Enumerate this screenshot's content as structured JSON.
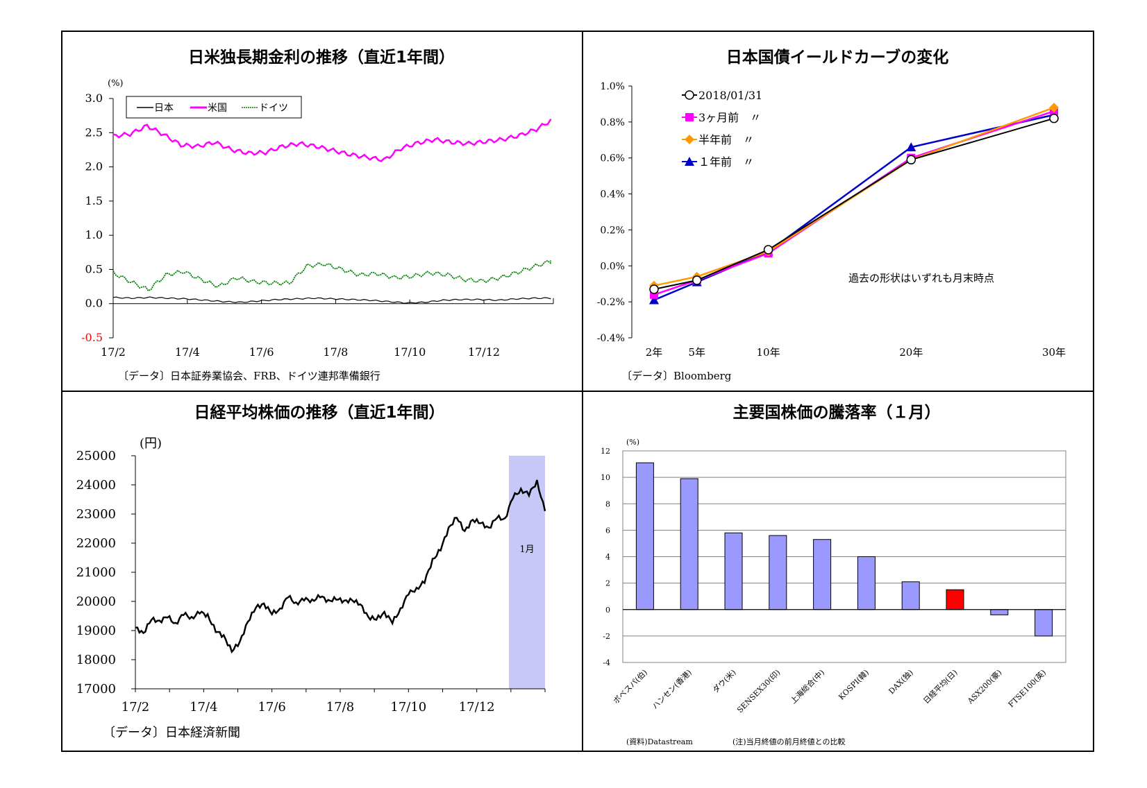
{
  "panels": {
    "rates": {
      "title": "日米独長期金利の推移（直近1年間）",
      "unit": "(%)",
      "source": "〔データ〕日本証券業協会、FRB、ドイツ連邦準備銀行"
    },
    "yield": {
      "title": "日本国債イールドカーブの変化",
      "source": "〔データ〕Bloomberg",
      "note": "過去の形状はいずれも月末時点"
    },
    "nikkei": {
      "title": "日経平均株価の推移（直近1年間）",
      "unit": "(円)",
      "source": "〔データ〕日本経済新聞",
      "highlight_label": "1月"
    },
    "stocks": {
      "title": "主要国株価の騰落率（１月）",
      "unit": "(%)",
      "source": "(資料)Datastream",
      "note": "(注)当月終値の前月終値との比較"
    }
  },
  "chart_data": [
    {
      "id": "rates",
      "type": "line",
      "title": "日米独長期金利の推移（直近1年間）",
      "ylabel": "(%)",
      "ylim": [
        -0.5,
        3.0
      ],
      "yticks": [
        "3.0",
        "2.5",
        "2.0",
        "1.5",
        "1.0",
        "0.5",
        "0.0",
        "-0.5"
      ],
      "x_ticks": [
        "17/2",
        "17/4",
        "17/6",
        "17/8",
        "17/10",
        "17/12"
      ],
      "legend_position": "top-left",
      "series": [
        {
          "name": "日本",
          "color": "#000000",
          "style": "solid",
          "values": [
            0.09,
            0.08,
            0.09,
            0.08,
            0.07,
            0.05,
            0.03,
            0.02,
            0.04,
            0.06,
            0.07,
            0.08,
            0.07,
            0.06,
            0.05,
            0.03,
            0.01,
            0.02,
            0.05,
            0.06,
            0.06,
            0.05,
            0.07,
            0.08,
            0.08
          ]
        },
        {
          "name": "米国",
          "color": "#ff00ff",
          "style": "solid",
          "values": [
            2.45,
            2.48,
            2.6,
            2.47,
            2.32,
            2.3,
            2.36,
            2.25,
            2.2,
            2.21,
            2.3,
            2.34,
            2.3,
            2.24,
            2.18,
            2.14,
            2.1,
            2.27,
            2.35,
            2.4,
            2.36,
            2.34,
            2.37,
            2.4,
            2.46,
            2.55,
            2.7
          ]
        },
        {
          "name": "ドイツ",
          "color": "#008000",
          "style": "dotted",
          "values": [
            0.45,
            0.32,
            0.2,
            0.42,
            0.47,
            0.35,
            0.25,
            0.38,
            0.32,
            0.3,
            0.3,
            0.55,
            0.58,
            0.5,
            0.42,
            0.44,
            0.38,
            0.4,
            0.45,
            0.42,
            0.35,
            0.33,
            0.38,
            0.46,
            0.55,
            0.63
          ]
        }
      ],
      "source": "〔データ〕日本証券業協会、FRB、ドイツ連邦準備銀行"
    },
    {
      "id": "yield",
      "type": "line",
      "title": "日本国債イールドカーブの変化",
      "categories": [
        "2年",
        "5年",
        "10年",
        "20年",
        "30年"
      ],
      "x": [
        2,
        5,
        10,
        20,
        30
      ],
      "ylim": [
        -0.4,
        1.0
      ],
      "yticks": [
        "1.0%",
        "0.8%",
        "0.6%",
        "0.4%",
        "0.2%",
        "0.0%",
        "-0.2%",
        "-0.4%"
      ],
      "legend_position": "top-left",
      "series": [
        {
          "name": "2018/01/31",
          "color": "#000000",
          "marker": "open-circle",
          "values": [
            -0.13,
            -0.08,
            0.09,
            0.59,
            0.82
          ]
        },
        {
          "name": "3ヶ月前　〃",
          "color": "#ff00ff",
          "marker": "square",
          "values": [
            -0.16,
            -0.08,
            0.07,
            0.6,
            0.86
          ]
        },
        {
          "name": "半年前　〃",
          "color": "#ff9900",
          "marker": "diamond",
          "values": [
            -0.11,
            -0.06,
            0.08,
            0.59,
            0.88
          ]
        },
        {
          "name": "１年前　〃",
          "color": "#0000cc",
          "marker": "triangle",
          "values": [
            -0.19,
            -0.09,
            0.08,
            0.66,
            0.84
          ]
        }
      ],
      "note": "過去の形状はいずれも月末時点",
      "source": "〔データ〕Bloomberg"
    },
    {
      "id": "nikkei",
      "type": "line",
      "title": "日経平均株価の推移（直近1年間）",
      "ylabel": "(円)",
      "ylim": [
        17000,
        25000
      ],
      "yticks": [
        "25000",
        "24000",
        "23000",
        "22000",
        "21000",
        "20000",
        "19000",
        "18000",
        "17000"
      ],
      "x_ticks": [
        "17/2",
        "17/4",
        "17/6",
        "17/8",
        "17/10",
        "17/12"
      ],
      "series": [
        {
          "name": "日経平均",
          "color": "#000000",
          "values": [
            19100,
            18900,
            19400,
            19300,
            19500,
            19200,
            19600,
            19400,
            19650,
            19500,
            19000,
            18800,
            18300,
            18600,
            19300,
            19800,
            19900,
            19600,
            19700,
            20200,
            19900,
            20100,
            20000,
            20200,
            20000,
            20100,
            20000,
            20050,
            19900,
            19450,
            19400,
            19600,
            19300,
            19700,
            20300,
            20400,
            20700,
            21400,
            21800,
            22500,
            22900,
            22400,
            22800,
            22700,
            22500,
            22900,
            22800,
            23600,
            23800,
            23700,
            24100,
            23100
          ]
        }
      ],
      "highlight": {
        "label": "1月"
      },
      "source": "〔データ〕日本経済新聞"
    },
    {
      "id": "stocks",
      "type": "bar",
      "title": "主要国株価の騰落率（１月）",
      "ylabel": "(%)",
      "ylim": [
        -4,
        12
      ],
      "yticks": [
        "12",
        "10",
        "8",
        "6",
        "4",
        "2",
        "0",
        "-2",
        "-4"
      ],
      "categories": [
        "ボベスパ(伯)",
        "ハンセン(香港)",
        "ダウ(米)",
        "SENSEX30(印)",
        "上海総合(中)",
        "KOSPI(韓)",
        "DAX(独)",
        "日経平均(日)",
        "ASX200(豪)",
        "FTSE100(英)"
      ],
      "values": [
        11.1,
        9.9,
        5.8,
        5.6,
        5.3,
        4.0,
        2.1,
        1.5,
        -0.4,
        -2.0
      ],
      "bar_color": "#9999ff",
      "highlight_color": "#ff0000",
      "highlight_index": 7,
      "source": "(資料)Datastream",
      "note": "(注)当月終値の前月終値との比較"
    }
  ]
}
